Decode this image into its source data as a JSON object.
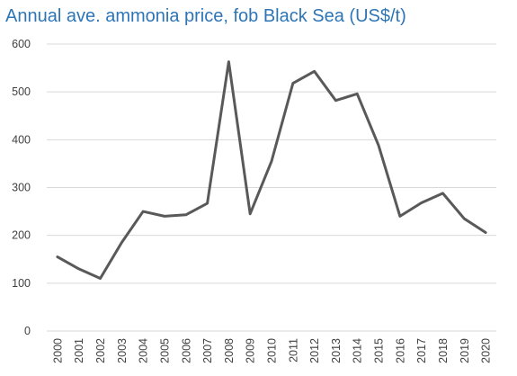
{
  "colors": {
    "title": "#2E75B6",
    "line": "#595959",
    "gridline": "#D9D9D9",
    "axis_text": "#404040"
  },
  "chart_data": {
    "type": "line",
    "title": "Annual ave. ammonia price, fob Black Sea (US$/t)",
    "xlabel": "",
    "ylabel": "",
    "ylim": [
      0,
      600
    ],
    "yticks": [
      0,
      100,
      200,
      300,
      400,
      500,
      600
    ],
    "grid": true,
    "legend": "none",
    "x": [
      "2000",
      "2001",
      "2002",
      "2003",
      "2004",
      "2005",
      "2006",
      "2007",
      "2008",
      "2009",
      "2010",
      "2011",
      "2012",
      "2013",
      "2014",
      "2015",
      "2016",
      "2017",
      "2018",
      "2019",
      "2020"
    ],
    "series": [
      {
        "values": [
          155,
          130,
          110,
          185,
          250,
          240,
          243,
          267,
          563,
          245,
          355,
          518,
          543,
          482,
          496,
          388,
          240,
          268,
          288,
          235,
          206
        ]
      }
    ]
  }
}
